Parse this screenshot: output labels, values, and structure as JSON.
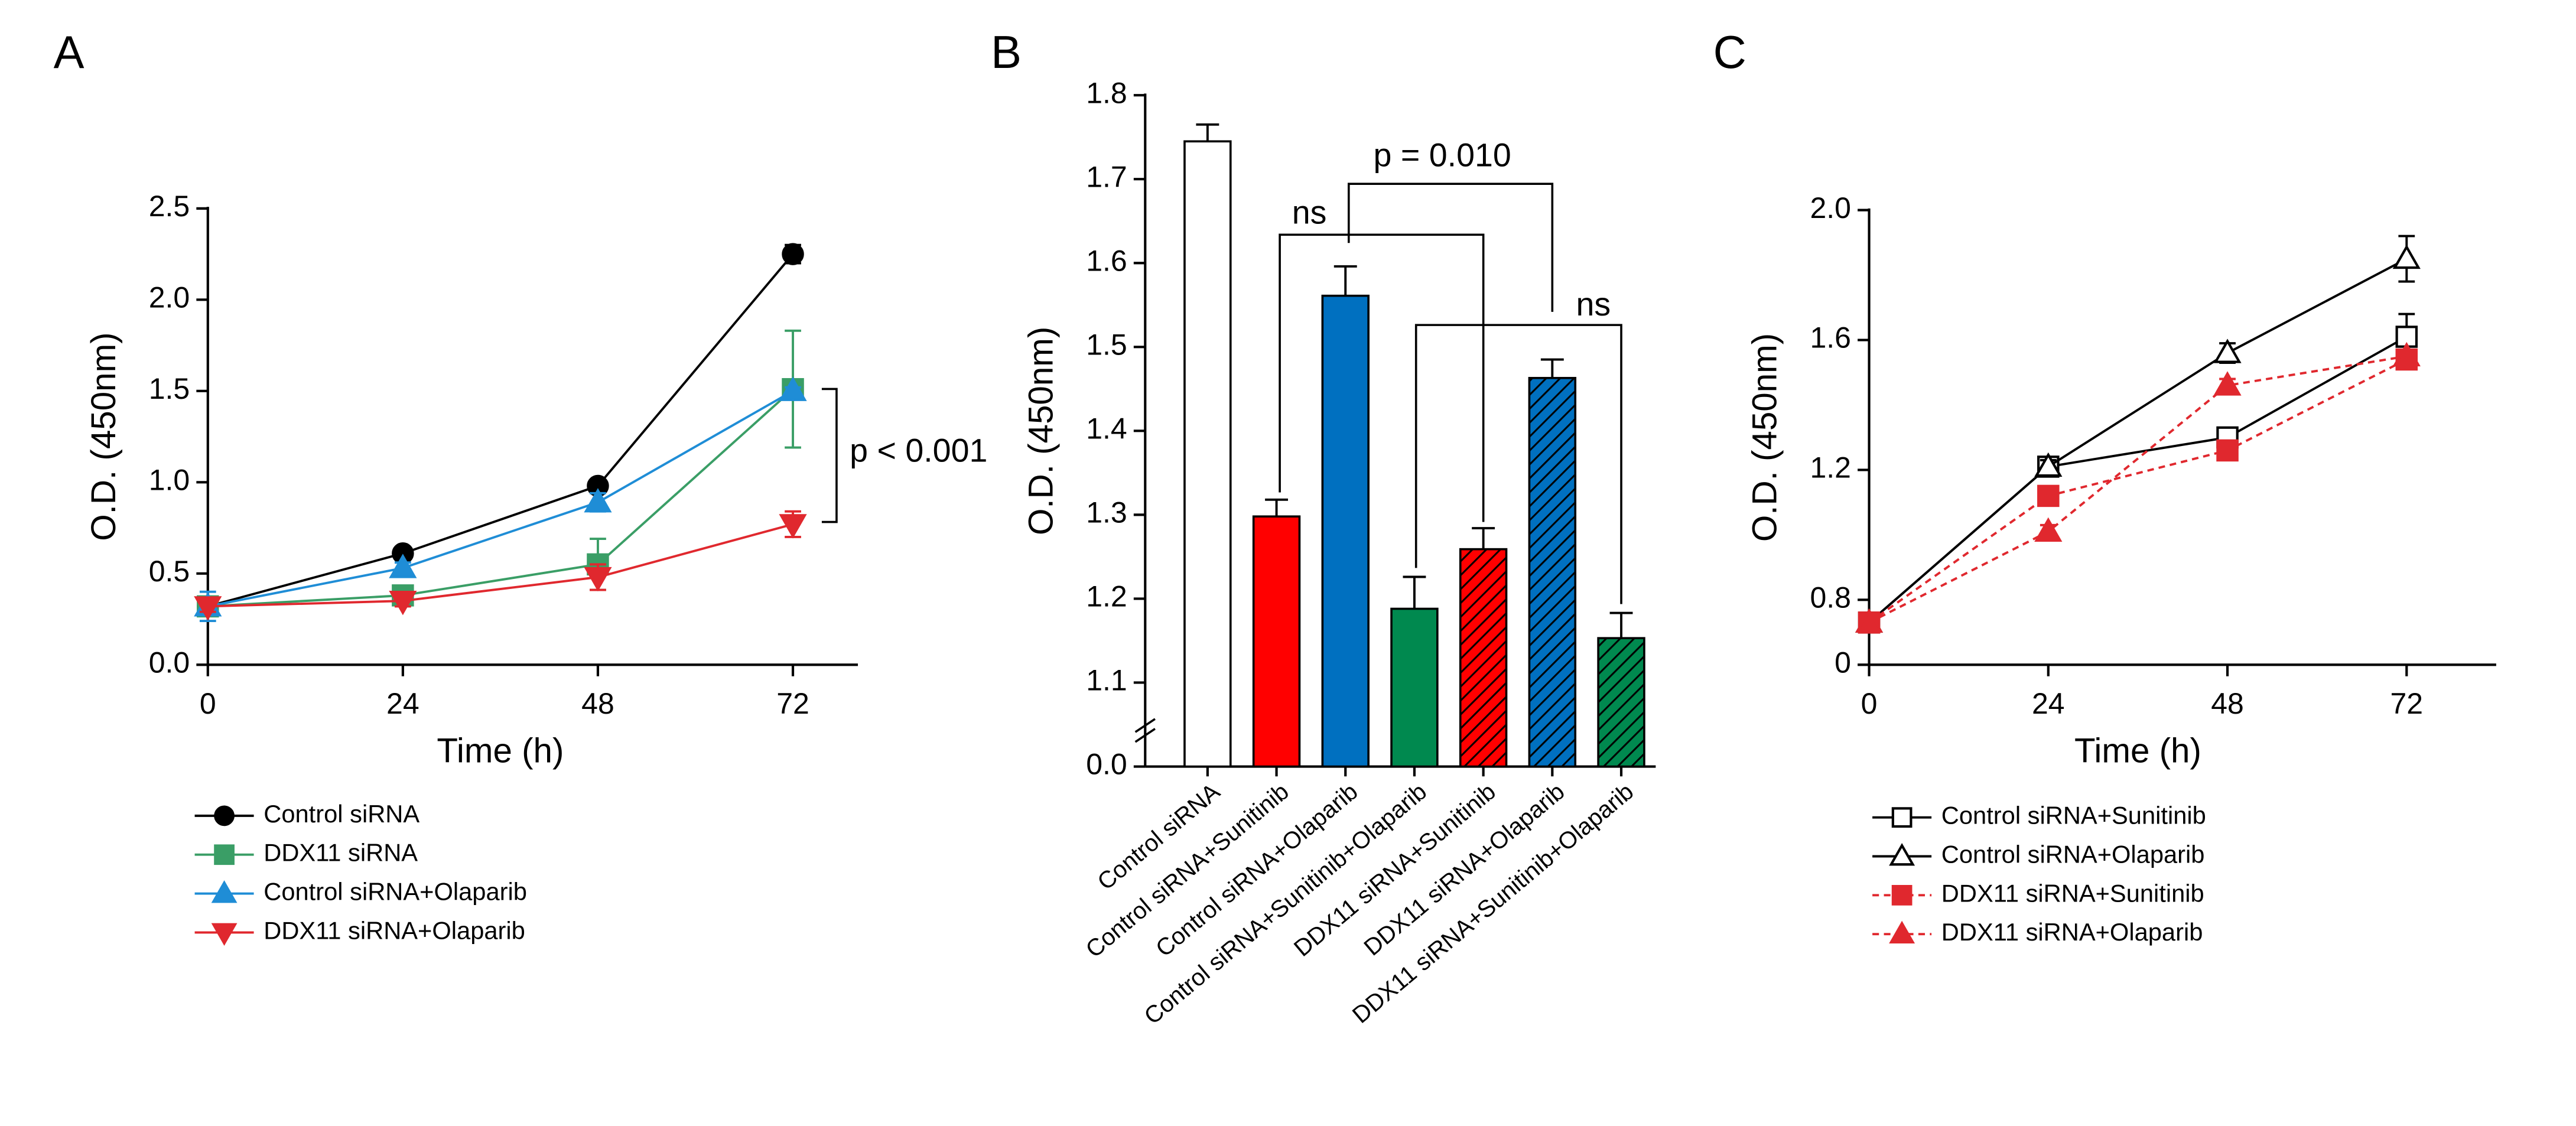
{
  "chart_data": [
    {
      "type": "line",
      "panel": "A",
      "xlabel": "Time (h)",
      "ylabel": "O.D. (450nm)",
      "x": [
        0,
        24,
        48,
        72
      ],
      "xlim": [
        0,
        80
      ],
      "xticks": [
        0,
        24,
        48,
        72
      ],
      "ylim": [
        0,
        2.5
      ],
      "yticks": [
        {
          "value": 0,
          "label": "0.0"
        },
        0.5,
        {
          "value": 1,
          "label": "1.0"
        },
        1.5,
        {
          "value": 2,
          "label": "2.0"
        },
        2.5
      ],
      "legend": "below",
      "series": [
        {
          "name": "Control siRNA",
          "color": "#000000",
          "marker": "circle",
          "filled": true,
          "dashed": false,
          "values": [
            0.32,
            0.61,
            0.98,
            2.25
          ],
          "errors": [
            0.02,
            0.02,
            0.02,
            0.05
          ]
        },
        {
          "name": "DDX11 siRNA",
          "color": "#3a9e66",
          "marker": "square",
          "filled": true,
          "dashed": false,
          "values": [
            0.32,
            0.38,
            0.55,
            1.51
          ],
          "errors": [
            0.03,
            0.03,
            0.14,
            0.32
          ]
        },
        {
          "name": "Control siRNA+Olaparib",
          "color": "#1f8dd6",
          "marker": "triangle",
          "filled": true,
          "dashed": false,
          "values": [
            0.32,
            0.53,
            0.89,
            1.5
          ],
          "errors": [
            0.08,
            0.03,
            0.05,
            0.02
          ]
        },
        {
          "name": "DDX11 siRNA+Olaparib",
          "color": "#e0282e",
          "marker": "triangle-down",
          "filled": true,
          "dashed": false,
          "values": [
            0.32,
            0.35,
            0.48,
            0.77
          ],
          "errors": [
            0.03,
            0.03,
            0.07,
            0.07
          ]
        }
      ],
      "annotations": [
        "p < 0.001"
      ]
    },
    {
      "type": "bar",
      "panel": "B",
      "ylabel": "O.D. (450nm)",
      "axis_break": true,
      "categories": [
        "Control siRNA",
        "Control siRNA+Sunitinib",
        "Control siRNA+Olaparib",
        "Control siRNA+Sunitinib+Olaparib",
        "DDX11 siRNA+Sunitinib",
        "DDX11 siRNA+Olaparib",
        "DDX11 siRNA+Sunitinib+Olaparib"
      ],
      "values": [
        1.745,
        1.298,
        1.561,
        1.188,
        1.259,
        1.463,
        1.153
      ],
      "errors": [
        0.02,
        0.02,
        0.035,
        0.038,
        0.025,
        0.022,
        0.03
      ],
      "colors": [
        "#ffffff",
        "#ff0000",
        "#0070c0",
        "#00894f",
        "#ff0000",
        "#0070c0",
        "#00894f"
      ],
      "hatch": [
        false,
        false,
        false,
        false,
        true,
        true,
        true
      ],
      "ylim": [
        1.0,
        1.8
      ],
      "yticks": [
        {
          "value": 0,
          "label": "0.0"
        },
        1.1,
        1.2,
        1.3,
        1.4,
        1.5,
        1.6,
        1.7,
        1.8
      ],
      "annotations": [
        "ns",
        "p = 0.010",
        "ns"
      ]
    },
    {
      "type": "line",
      "panel": "C",
      "xlabel": "Time (h)",
      "ylabel": "O.D. (450nm)",
      "axis_break": true,
      "x": [
        0,
        24,
        48,
        72
      ],
      "xlim": [
        0,
        84
      ],
      "xticks": [
        0,
        24,
        48,
        72
      ],
      "ylim": [
        0.6,
        2.0
      ],
      "yticks": [
        0,
        0.8,
        1.2,
        1.6,
        {
          "value": 2,
          "label": "2.0"
        }
      ],
      "legend": "below",
      "series": [
        {
          "name": "Control siRNA+Sunitinib",
          "color": "#000000",
          "marker": "square",
          "filled": false,
          "dashed": false,
          "values": [
            0.73,
            1.21,
            1.3,
            1.61
          ],
          "errors": [
            0.02,
            0.02,
            0.02,
            0.07
          ]
        },
        {
          "name": "Control siRNA+Olaparib",
          "color": "#000000",
          "marker": "triangle",
          "filled": false,
          "dashed": false,
          "values": [
            0.73,
            1.21,
            1.56,
            1.85
          ],
          "errors": [
            0.02,
            0.02,
            0.03,
            0.07
          ]
        },
        {
          "name": "DDX11 siRNA+Sunitinib",
          "color": "#e0282e",
          "marker": "square",
          "filled": true,
          "dashed": true,
          "values": [
            0.73,
            1.12,
            1.26,
            1.54
          ],
          "errors": [
            0.02,
            0.02,
            0.02,
            0.02
          ]
        },
        {
          "name": "DDX11 siRNA+Olaparib",
          "color": "#e0282e",
          "marker": "triangle",
          "filled": true,
          "dashed": true,
          "values": [
            0.73,
            1.01,
            1.46,
            1.55
          ],
          "errors": [
            0.02,
            0.02,
            0.02,
            0.02
          ]
        }
      ]
    }
  ]
}
